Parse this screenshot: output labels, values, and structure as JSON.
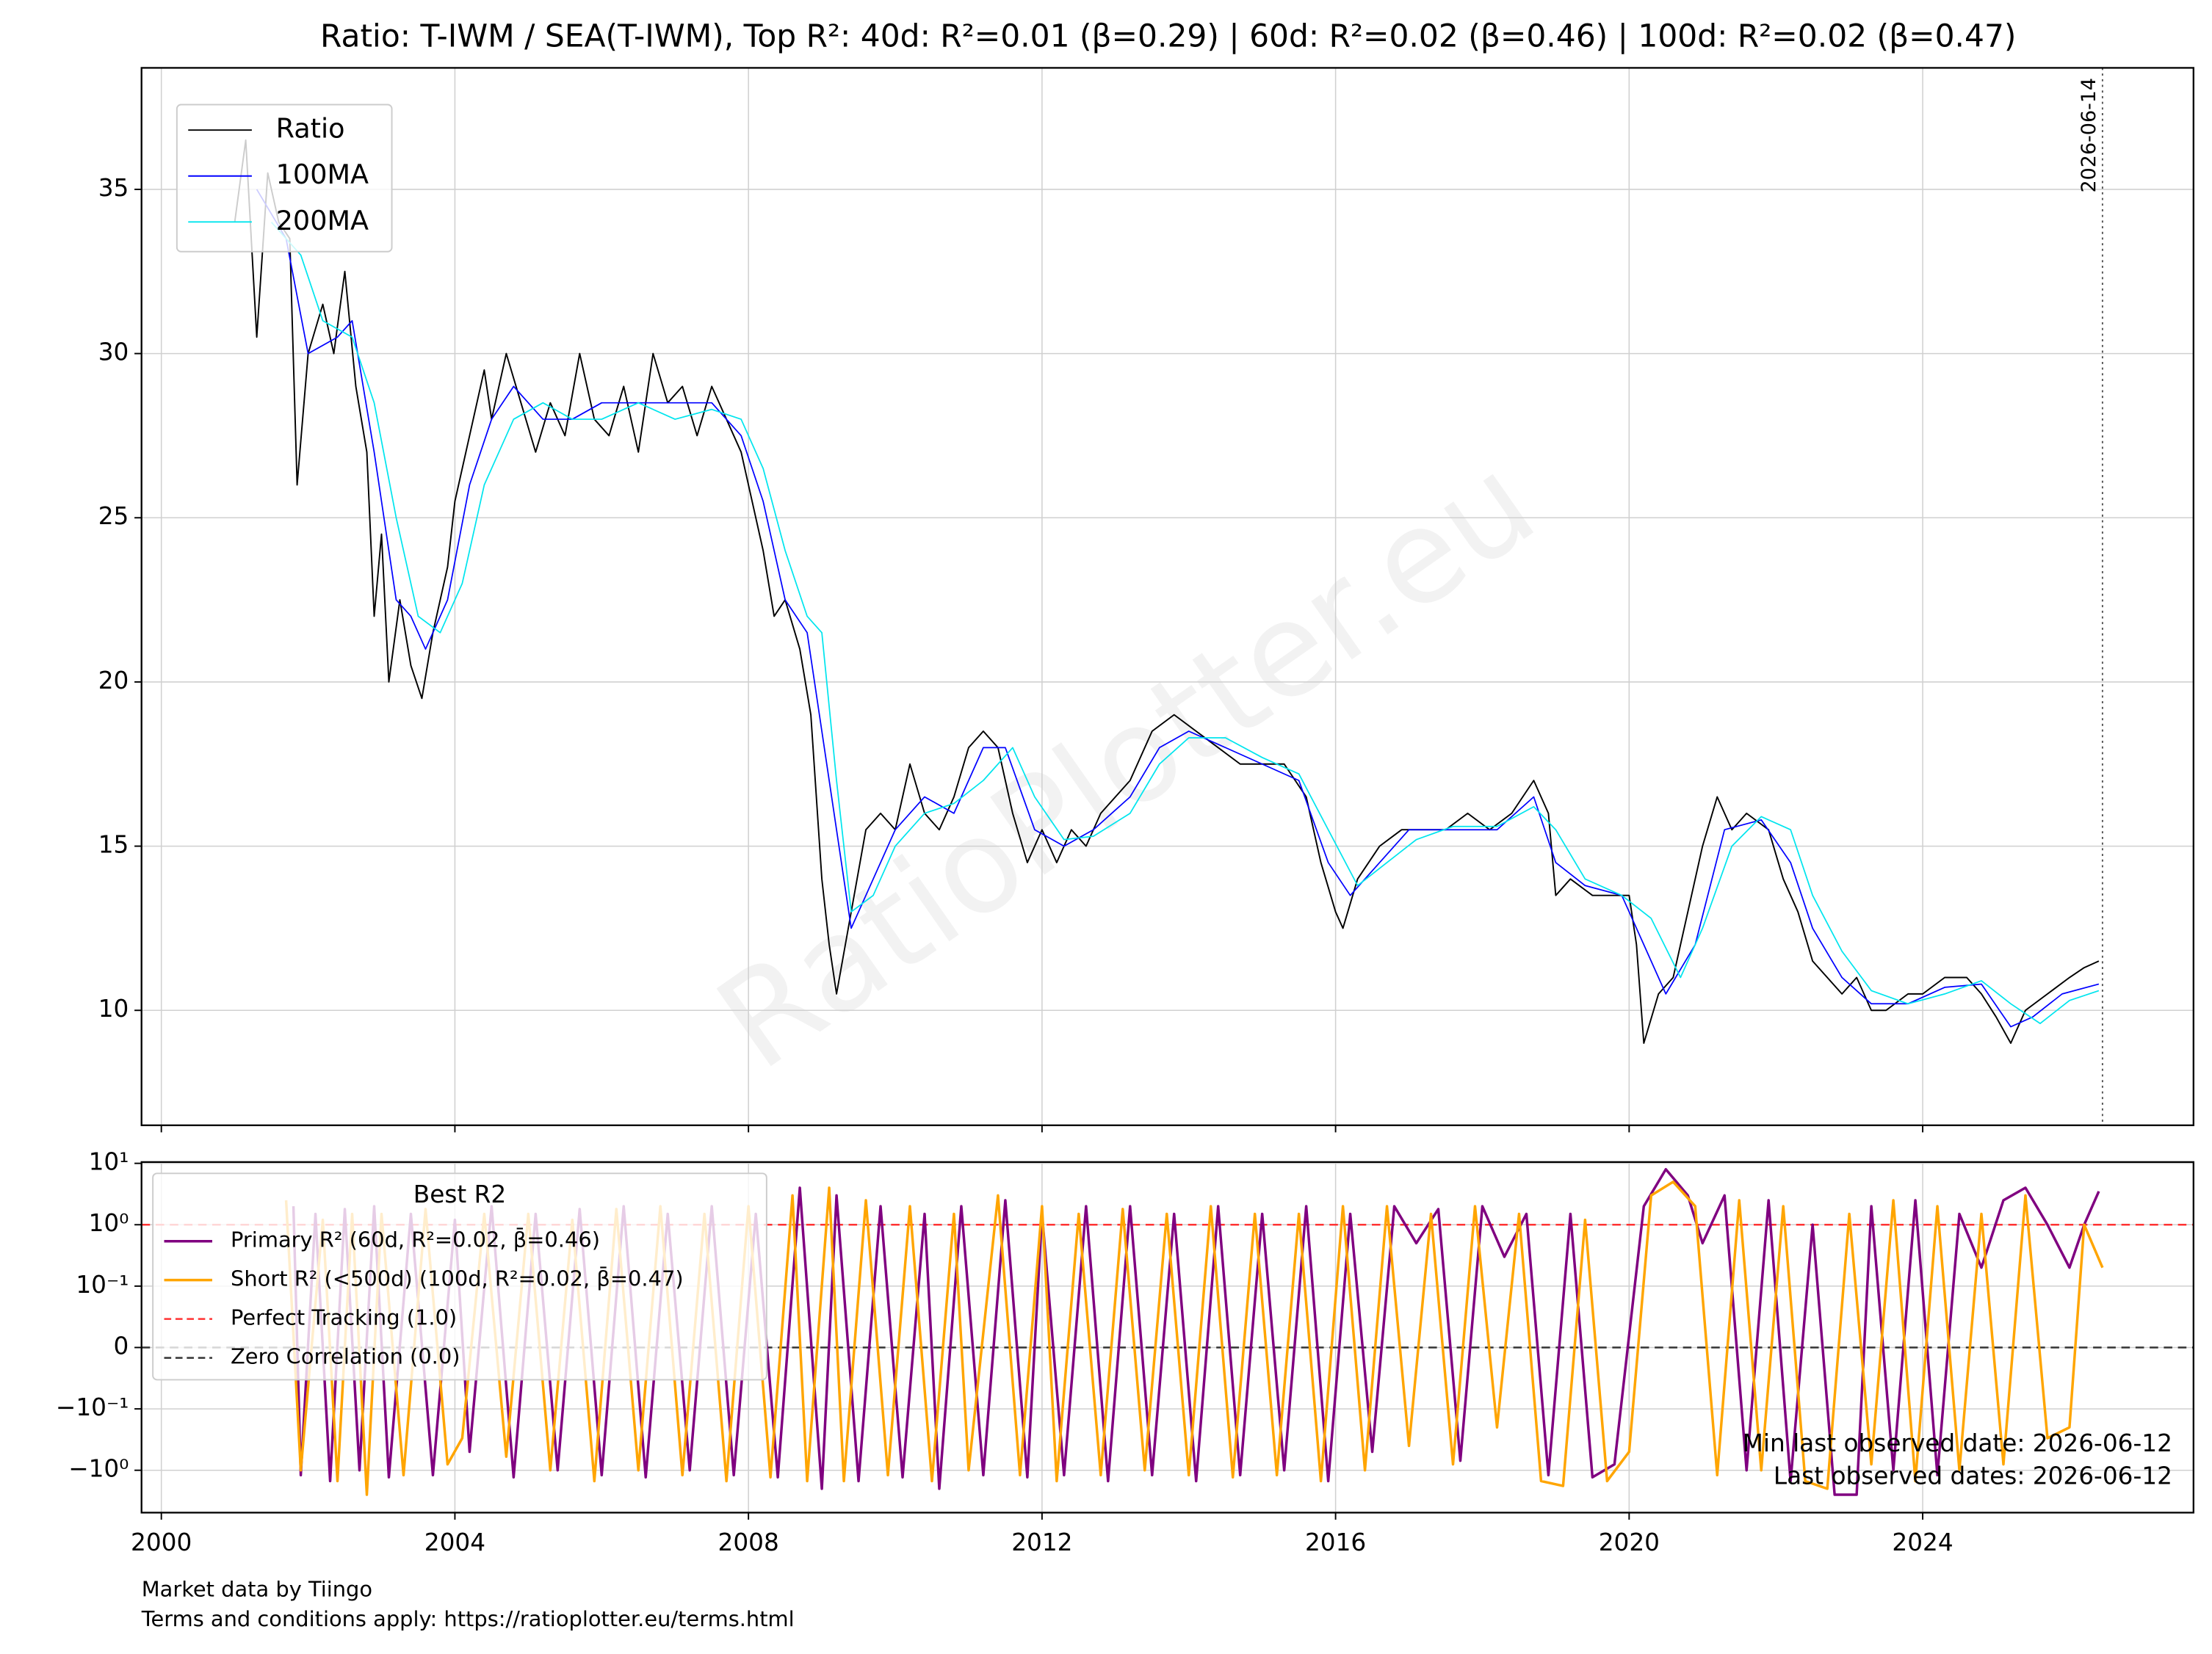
{
  "chart_data": [
    {
      "type": "line",
      "title": "Ratio: T-IWM / SEA(T-IWM), Top R²: 40d: R²=0.01 (β=0.29) | 60d: R²=0.02 (β=0.46) | 100d: R²=0.02 (β=0.47)",
      "watermark": "RatioPlotter.eu",
      "xlim": [
        1999.73,
        2027.69
      ],
      "xticks": [
        2000,
        2004,
        2008,
        2012,
        2016,
        2020,
        2024
      ],
      "ylim": [
        6.5,
        38.7
      ],
      "yticks": [
        10,
        15,
        20,
        25,
        30,
        35
      ],
      "grid": true,
      "legend": "upper left",
      "vline": {
        "x": 2026.45,
        "label": "2026-06-14"
      },
      "series": [
        {
          "name": "Ratio",
          "color": "#000000",
          "x": [
            2001.0,
            2001.15,
            2001.3,
            2001.45,
            2001.6,
            2001.75,
            2001.85,
            2002.0,
            2002.2,
            2002.35,
            2002.5,
            2002.65,
            2002.8,
            2002.9,
            2003.0,
            2003.1,
            2003.25,
            2003.4,
            2003.55,
            2003.7,
            2003.9,
            2004.0,
            2004.2,
            2004.4,
            2004.5,
            2004.7,
            2004.9,
            2005.1,
            2005.3,
            2005.5,
            2005.7,
            2005.9,
            2006.1,
            2006.3,
            2006.5,
            2006.7,
            2006.9,
            2007.1,
            2007.3,
            2007.5,
            2007.7,
            2007.9,
            2008.0,
            2008.2,
            2008.35,
            2008.5,
            2008.7,
            2008.85,
            2009.0,
            2009.1,
            2009.2,
            2009.4,
            2009.6,
            2009.8,
            2010.0,
            2010.2,
            2010.4,
            2010.6,
            2010.8,
            2011.0,
            2011.2,
            2011.4,
            2011.6,
            2011.8,
            2012.0,
            2012.2,
            2012.4,
            2012.6,
            2012.8,
            2013.0,
            2013.2,
            2013.5,
            2013.8,
            2014.1,
            2014.4,
            2014.7,
            2015.0,
            2015.3,
            2015.6,
            2015.8,
            2016.0,
            2016.1,
            2016.3,
            2016.6,
            2016.9,
            2017.2,
            2017.5,
            2017.8,
            2018.1,
            2018.4,
            2018.7,
            2018.9,
            2019.0,
            2019.2,
            2019.5,
            2019.8,
            2020.0,
            2020.1,
            2020.2,
            2020.4,
            2020.6,
            2020.8,
            2021.0,
            2021.2,
            2021.4,
            2021.6,
            2021.9,
            2022.1,
            2022.3,
            2022.5,
            2022.7,
            2022.9,
            2023.1,
            2023.3,
            2023.5,
            2023.8,
            2024.0,
            2024.3,
            2024.6,
            2024.8,
            2025.0,
            2025.2,
            2025.4,
            2025.7,
            2026.0,
            2026.2,
            2026.4
          ],
          "values": [
            34,
            36.5,
            30.5,
            35.5,
            34,
            33.5,
            26,
            30,
            31.5,
            30,
            32.5,
            29,
            27,
            22,
            24.5,
            20,
            22.5,
            20.5,
            19.5,
            21.5,
            23.5,
            25.5,
            27.5,
            29.5,
            28,
            30,
            28.5,
            27,
            28.5,
            27.5,
            30,
            28,
            27.5,
            29,
            27,
            30,
            28.5,
            29,
            27.5,
            29,
            28,
            27,
            26,
            24,
            22,
            22.5,
            21,
            19,
            14,
            12,
            10.5,
            13,
            15.5,
            16,
            15.5,
            17.5,
            16,
            15.5,
            16.5,
            18,
            18.5,
            18,
            16,
            14.5,
            15.5,
            14.5,
            15.5,
            15,
            16,
            16.5,
            17,
            18.5,
            19,
            18.5,
            18,
            17.5,
            17.5,
            17.5,
            16.5,
            14.5,
            13,
            12.5,
            14,
            15,
            15.5,
            15.5,
            15.5,
            16,
            15.5,
            16,
            17,
            16,
            13.5,
            14,
            13.5,
            13.5,
            13.5,
            12,
            9,
            10.5,
            11,
            13,
            15,
            16.5,
            15.5,
            16,
            15.5,
            14,
            13,
            11.5,
            11,
            10.5,
            11,
            10,
            10,
            10.5,
            10.5,
            11,
            11,
            10.5,
            9.8,
            9,
            10,
            10.5,
            11,
            11.3,
            11.5
          ]
        },
        {
          "name": "100MA",
          "color": "#0000ff",
          "x": [
            2001.3,
            2001.7,
            2002.0,
            2002.4,
            2002.6,
            2002.9,
            2003.2,
            2003.4,
            2003.6,
            2003.9,
            2004.2,
            2004.5,
            2004.8,
            2005.2,
            2005.6,
            2006.0,
            2006.5,
            2007.0,
            2007.5,
            2007.9,
            2008.2,
            2008.5,
            2008.8,
            2009.1,
            2009.4,
            2009.7,
            2010.0,
            2010.4,
            2010.8,
            2011.2,
            2011.5,
            2011.9,
            2012.3,
            2012.7,
            2013.2,
            2013.6,
            2014.0,
            2014.5,
            2015.0,
            2015.5,
            2015.9,
            2016.2,
            2016.6,
            2017.0,
            2017.6,
            2018.2,
            2018.7,
            2019.0,
            2019.4,
            2019.9,
            2020.2,
            2020.5,
            2020.9,
            2021.3,
            2021.8,
            2022.2,
            2022.5,
            2022.9,
            2023.3,
            2023.8,
            2024.3,
            2024.8,
            2025.2,
            2025.5,
            2025.9,
            2026.4
          ],
          "values": [
            35,
            33.5,
            30,
            30.5,
            31,
            27,
            22.5,
            22,
            21,
            22.5,
            26,
            28,
            29,
            28,
            28,
            28.5,
            28.5,
            28.5,
            28.5,
            27.5,
            25.5,
            22.5,
            21.5,
            17,
            12.5,
            14,
            15.5,
            16.5,
            16,
            18,
            18,
            15.5,
            15,
            15.5,
            16.5,
            18,
            18.5,
            18,
            17.5,
            17,
            14.5,
            13.5,
            14.5,
            15.5,
            15.5,
            15.5,
            16.5,
            14.5,
            13.8,
            13.5,
            12,
            10.5,
            12,
            15.5,
            15.8,
            14.5,
            12.5,
            11,
            10.2,
            10.2,
            10.7,
            10.8,
            9.5,
            9.8,
            10.5,
            10.8
          ]
        },
        {
          "name": "200MA",
          "color": "#00e5ee",
          "x": [
            2001.5,
            2001.9,
            2002.2,
            2002.6,
            2002.9,
            2003.2,
            2003.5,
            2003.8,
            2004.1,
            2004.4,
            2004.8,
            2005.2,
            2005.6,
            2006.0,
            2006.5,
            2007.0,
            2007.5,
            2007.9,
            2008.2,
            2008.5,
            2008.8,
            2009.0,
            2009.2,
            2009.4,
            2009.7,
            2010.0,
            2010.4,
            2010.8,
            2011.2,
            2011.6,
            2011.9,
            2012.3,
            2012.7,
            2013.2,
            2013.6,
            2014.0,
            2014.5,
            2015.0,
            2015.5,
            2015.9,
            2016.3,
            2016.7,
            2017.1,
            2017.6,
            2018.2,
            2018.7,
            2019.0,
            2019.4,
            2019.9,
            2020.3,
            2020.7,
            2021.0,
            2021.4,
            2021.8,
            2022.2,
            2022.5,
            2022.9,
            2023.3,
            2023.8,
            2024.3,
            2024.8,
            2025.2,
            2025.6,
            2026.0,
            2026.4
          ],
          "values": [
            34,
            33,
            31,
            30.5,
            28.5,
            25,
            22,
            21.5,
            23,
            26,
            28,
            28.5,
            28,
            28,
            28.5,
            28,
            28.3,
            28,
            26.5,
            24,
            22,
            21.5,
            17,
            13,
            13.5,
            15,
            16,
            16.3,
            17,
            18,
            16.5,
            15.2,
            15.3,
            16,
            17.5,
            18.3,
            18.3,
            17.7,
            17.2,
            15.5,
            13.8,
            14.5,
            15.2,
            15.6,
            15.6,
            16.2,
            15.5,
            14,
            13.5,
            12.8,
            11,
            12.5,
            15,
            15.9,
            15.5,
            13.5,
            11.8,
            10.6,
            10.2,
            10.5,
            10.9,
            10.2,
            9.6,
            10.3,
            10.6
          ]
        }
      ]
    },
    {
      "type": "line",
      "scale": "symlog",
      "linthresh": 0.1,
      "xlim": [
        1999.73,
        2027.69
      ],
      "xticks": [
        2000,
        2004,
        2008,
        2012,
        2016,
        2020,
        2024
      ],
      "ylim": [
        -4.9,
        10.5
      ],
      "yticks": [
        {
          "value": -1,
          "label": "−10⁰"
        },
        {
          "value": -0.1,
          "label": "−10⁻¹"
        },
        0,
        {
          "value": 0.1,
          "label": "10⁻¹"
        },
        {
          "value": 1,
          "label": "10⁰"
        },
        {
          "value": 10,
          "label": "10¹"
        }
      ],
      "grid": true,
      "legend": "upper left",
      "legend_title": "Best R2",
      "series": [
        {
          "name": "Primary R² (60d, R²=0.02, β̄=0.46)",
          "color": "#800080",
          "x": [
            2001.8,
            2001.9,
            2002.1,
            2002.3,
            2002.5,
            2002.7,
            2002.9,
            2003.1,
            2003.4,
            2003.7,
            2004.0,
            2004.2,
            2004.5,
            2004.8,
            2005.1,
            2005.4,
            2005.7,
            2006.0,
            2006.3,
            2006.6,
            2006.9,
            2007.2,
            2007.5,
            2007.8,
            2008.1,
            2008.4,
            2008.7,
            2009.0,
            2009.2,
            2009.5,
            2009.8,
            2010.1,
            2010.4,
            2010.6,
            2010.9,
            2011.2,
            2011.5,
            2011.8,
            2012.0,
            2012.3,
            2012.6,
            2012.9,
            2013.2,
            2013.5,
            2013.8,
            2014.1,
            2014.4,
            2014.7,
            2015.0,
            2015.3,
            2015.6,
            2015.9,
            2016.2,
            2016.5,
            2016.8,
            2017.1,
            2017.4,
            2017.7,
            2018.0,
            2018.3,
            2018.6,
            2018.9,
            2019.2,
            2019.5,
            2019.8,
            2020.2,
            2020.5,
            2020.8,
            2021.0,
            2021.3,
            2021.6,
            2021.9,
            2022.2,
            2022.5,
            2022.8,
            2023.1,
            2023.3,
            2023.6,
            2023.9,
            2024.2,
            2024.5,
            2024.8,
            2025.1,
            2025.4,
            2025.7,
            2026.0,
            2026.2,
            2026.4
          ],
          "values": [
            2,
            -1.2,
            1.5,
            -1.5,
            1.8,
            -1,
            2,
            -1.3,
            1.5,
            -1.2,
            1.2,
            -0.5,
            2,
            -1.3,
            1.5,
            -1,
            1.8,
            -1.2,
            2,
            -1.3,
            1.5,
            -1,
            2,
            -1.2,
            1.5,
            -1.3,
            4,
            -2,
            3,
            -1.5,
            2,
            -1.3,
            1.5,
            -2,
            2,
            -1.2,
            2.5,
            -1.3,
            1.5,
            -1.2,
            2,
            -1.5,
            2,
            -1.2,
            1.5,
            -1.5,
            2,
            -1.2,
            1.5,
            -1,
            2,
            -1.5,
            1.5,
            -0.5,
            2,
            0.5,
            1.8,
            -0.7,
            2,
            0.3,
            1.5,
            -1.2,
            1.5,
            -1.3,
            -0.8,
            2,
            8,
            3,
            0.5,
            3,
            -1,
            2.5,
            -1.5,
            1,
            -2.5,
            -2.5,
            2,
            -1,
            2.5,
            -1.2,
            1.5,
            0.2,
            2.5,
            4,
            1,
            0.2,
            1,
            3.5
          ]
        },
        {
          "name": "Short R² (<500d) (100d, R²=0.02, β̄=0.47)",
          "color": "#ffa500",
          "x": [
            2001.7,
            2001.9,
            2002.2,
            2002.4,
            2002.6,
            2002.8,
            2003.0,
            2003.3,
            2003.6,
            2003.9,
            2004.1,
            2004.4,
            2004.7,
            2005.0,
            2005.3,
            2005.6,
            2005.9,
            2006.2,
            2006.5,
            2006.8,
            2007.1,
            2007.4,
            2007.7,
            2008.0,
            2008.3,
            2008.6,
            2008.8,
            2009.1,
            2009.3,
            2009.6,
            2009.9,
            2010.2,
            2010.5,
            2010.8,
            2011.0,
            2011.4,
            2011.7,
            2012.0,
            2012.2,
            2012.5,
            2012.8,
            2013.1,
            2013.4,
            2013.7,
            2014.0,
            2014.3,
            2014.6,
            2014.9,
            2015.2,
            2015.5,
            2015.8,
            2016.1,
            2016.4,
            2016.7,
            2017.0,
            2017.3,
            2017.6,
            2017.9,
            2018.2,
            2018.5,
            2018.8,
            2019.1,
            2019.4,
            2019.7,
            2020.0,
            2020.3,
            2020.6,
            2020.9,
            2021.2,
            2021.5,
            2021.8,
            2022.1,
            2022.4,
            2022.7,
            2023.0,
            2023.3,
            2023.6,
            2023.9,
            2024.2,
            2024.5,
            2024.8,
            2025.1,
            2025.4,
            2025.7,
            2026.0,
            2026.2,
            2026.45
          ],
          "values": [
            2.5,
            -1,
            1.2,
            -1.5,
            1.5,
            -2.5,
            1.5,
            -1.2,
            1.8,
            -0.8,
            -0.3,
            1.5,
            -0.6,
            1.5,
            -1,
            1.2,
            -1.5,
            1.8,
            -1,
            2,
            -1.2,
            1.5,
            -1.5,
            2,
            -1.3,
            3,
            -1.5,
            4,
            -1.5,
            2.5,
            -1.2,
            2,
            -1.5,
            1.5,
            -1,
            3,
            -1.2,
            2,
            -1.5,
            1.5,
            -1.2,
            1.8,
            -1,
            1.5,
            -1.2,
            2,
            -1.3,
            1.5,
            -1.2,
            1.5,
            -1.5,
            2,
            -1,
            2,
            -0.4,
            1.5,
            -0.8,
            2,
            -0.2,
            1.5,
            -1.5,
            -1.8,
            1.2,
            -1.5,
            -0.5,
            3,
            5,
            2,
            -1.2,
            2.5,
            -1,
            2,
            -1.5,
            -2,
            1.5,
            -0.8,
            2.5,
            -1.5,
            2,
            -1,
            1.5,
            -0.8,
            3,
            -0.3,
            -0.2,
            1,
            0.2
          ]
        }
      ],
      "hlines": [
        {
          "name": "Perfect Tracking (1.0)",
          "value": 1,
          "color": "#ff3333"
        },
        {
          "name": "Zero Correlation (0.0)",
          "value": 0,
          "color": "#333333"
        }
      ],
      "annotations": [
        "Min last observed date: 2026-06-12",
        "Last observed dates: 2026-06-12"
      ]
    }
  ],
  "footer": [
    "Market data by Tiingo",
    "Terms and conditions apply: https://ratioplotter.eu/terms.html"
  ]
}
